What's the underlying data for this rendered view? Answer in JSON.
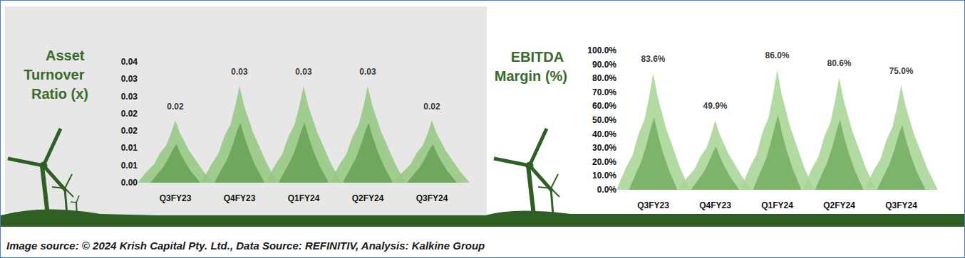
{
  "chart_data": [
    {
      "type": "bar",
      "title": "Asset Turnover Ratio (x)",
      "categories": [
        "Q3FY23",
        "Q4FY23",
        "Q1FY24",
        "Q2FY24",
        "Q3FY24"
      ],
      "values": [
        0.018,
        0.028,
        0.028,
        0.028,
        0.018
      ],
      "value_labels": [
        "0.02",
        "0.03",
        "0.03",
        "0.03",
        "0.02"
      ],
      "color": "#93c77f",
      "ylim": [
        0,
        0.035
      ],
      "yticks": [
        {
          "value": 0,
          "label": "0.00"
        },
        {
          "value": 0.005,
          "label": "0.01"
        },
        {
          "value": 0.01,
          "label": "0.01"
        },
        {
          "value": 0.015,
          "label": "0.02"
        },
        {
          "value": 0.02,
          "label": "0.02"
        },
        {
          "value": 0.025,
          "label": "0.03"
        },
        {
          "value": 0.03,
          "label": "0.03"
        },
        {
          "value": 0.035,
          "label": "0.04"
        }
      ],
      "grid": false,
      "data_labels": true
    },
    {
      "type": "bar",
      "title": "EBITDA Margin (%)",
      "categories": [
        "Q3FY23",
        "Q4FY23",
        "Q1FY24",
        "Q2FY24",
        "Q3FY24"
      ],
      "values": [
        83.6,
        49.9,
        86.0,
        80.6,
        75.0
      ],
      "value_labels": [
        "83.6%",
        "49.9%",
        "86.0%",
        "80.6%",
        "75.0%"
      ],
      "color": "#a6d493",
      "ylim": [
        0,
        100
      ],
      "yticks": [
        {
          "value": 0,
          "label": "0.0%"
        },
        {
          "value": 10,
          "label": "10.0%"
        },
        {
          "value": 20,
          "label": "20.0%"
        },
        {
          "value": 30,
          "label": "30.0%"
        },
        {
          "value": 40,
          "label": "40.0%"
        },
        {
          "value": 50,
          "label": "50.0%"
        },
        {
          "value": 60,
          "label": "60.0%"
        },
        {
          "value": 70,
          "label": "70.0%"
        },
        {
          "value": 80,
          "label": "80.0%"
        },
        {
          "value": 90,
          "label": "90.0%"
        },
        {
          "value": 100,
          "label": "100.0%"
        }
      ],
      "grid": false,
      "data_labels": true
    }
  ],
  "source": "Image source: © 2024 Krish Capital Pty. Ltd., Data Source: REFINITIV, Analysis: Kalkine Group"
}
